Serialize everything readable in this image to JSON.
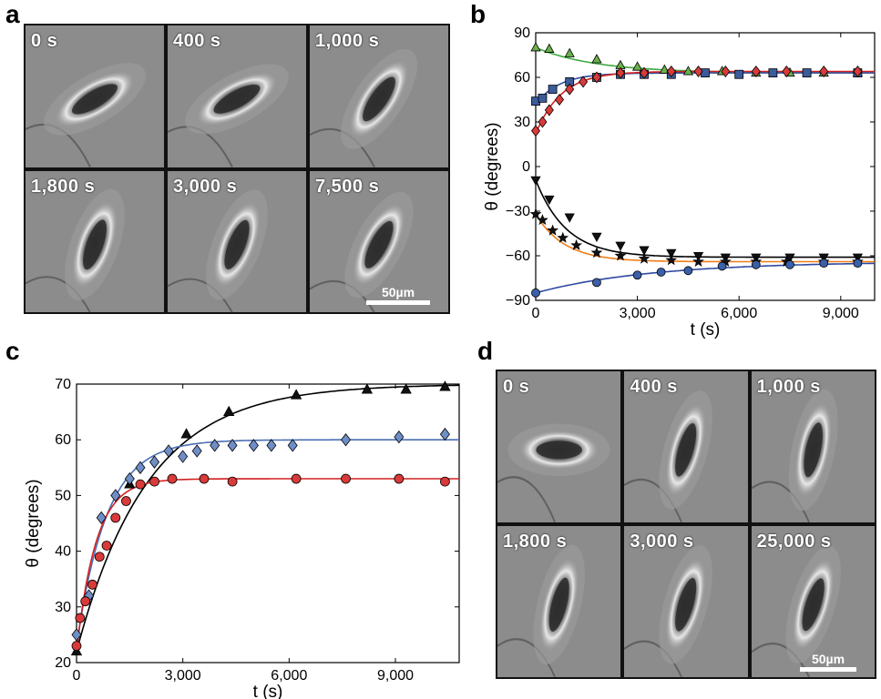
{
  "panels": {
    "a": {
      "label": "a",
      "tiles": [
        "0 s",
        "400 s",
        "1,000 s",
        "1,800 s",
        "3,000 s",
        "7,500 s"
      ],
      "orientation_deg": [
        -30,
        -28,
        -55,
        -70,
        -68,
        -62
      ],
      "scalebar": "50µm"
    },
    "d": {
      "label": "d",
      "tiles": [
        "0 s",
        "400 s",
        "1,000 s",
        "1,800 s",
        "3,000 s",
        "25,000 s"
      ],
      "orientation_deg": [
        0,
        -70,
        -75,
        -72,
        -70,
        -68
      ],
      "scalebar": "50µm"
    }
  },
  "chart_data": [
    {
      "panel": "b",
      "type": "scatter",
      "xlabel": "t (s)",
      "ylabel": "θ (degrees)",
      "xlim": [
        0,
        10000
      ],
      "ylim": [
        -90,
        90
      ],
      "xticks": [
        0,
        3000,
        6000,
        9000
      ],
      "xtick_labels": [
        "0",
        "3,000",
        "6,000",
        "9,000"
      ],
      "yticks": [
        -90,
        -60,
        -30,
        0,
        30,
        60,
        90
      ],
      "ytick_labels": [
        "−90",
        "−60",
        "−30",
        "0",
        "30",
        "60",
        "90"
      ],
      "series": [
        {
          "marker": "triangle-up",
          "color": "#6ab04c",
          "line": "#3ea83e",
          "fit": {
            "a": 80,
            "b": 63,
            "tau": 1800
          },
          "x": [
            0,
            400,
            1000,
            1800,
            2500,
            3000,
            3800,
            4500,
            5500,
            6500,
            7500,
            8500,
            9500
          ],
          "y": [
            80,
            79,
            76,
            72,
            68,
            67,
            65,
            64,
            64,
            63,
            63,
            63,
            63
          ]
        },
        {
          "marker": "square",
          "color": "#3b5b9a",
          "line": "#2e4aa0",
          "fit": {
            "a": 42,
            "b": 63,
            "tau": 700
          },
          "x": [
            0,
            200,
            500,
            1000,
            1800,
            2500,
            3200,
            4000,
            5000,
            6000,
            7000,
            8000,
            9500
          ],
          "y": [
            44,
            46,
            52,
            57,
            60,
            62,
            62,
            62,
            63,
            62,
            63,
            63,
            63
          ]
        },
        {
          "marker": "diamond",
          "color": "#d93a3a",
          "line": "#d42020",
          "fit": {
            "a": 22,
            "b": 64,
            "tau": 750
          },
          "x": [
            0,
            200,
            400,
            700,
            1000,
            1400,
            1800,
            2500,
            3200,
            4000,
            4800,
            5600,
            6500,
            7400,
            8500,
            9500
          ],
          "y": [
            24,
            30,
            38,
            45,
            52,
            57,
            60,
            63,
            63,
            64,
            64,
            64,
            64,
            64,
            64,
            64
          ]
        },
        {
          "marker": "triangle-down",
          "color": "#111111",
          "line": "#000000",
          "fit": {
            "a": -9,
            "b": -61,
            "tau": 900
          },
          "x": [
            0,
            400,
            1000,
            1800,
            2500,
            3200,
            4000,
            4800,
            5600,
            6500,
            7500,
            8500,
            9500
          ],
          "y": [
            -9,
            -22,
            -34,
            -47,
            -53,
            -56,
            -58,
            -60,
            -61,
            -61,
            -61,
            -61,
            -61
          ]
        },
        {
          "marker": "star",
          "color": "#111111",
          "line": "#f07d18",
          "fit": {
            "a": -32,
            "b": -64,
            "tau": 850
          },
          "x": [
            0,
            200,
            500,
            800,
            1200,
            1800,
            2500,
            3200,
            4000,
            4800,
            5600,
            6500,
            7400,
            8500,
            9500
          ],
          "y": [
            -32,
            -36,
            -43,
            -48,
            -53,
            -58,
            -60,
            -62,
            -63,
            -64,
            -64,
            -64,
            -64,
            -64,
            -64
          ]
        },
        {
          "marker": "circle",
          "color": "#3b5fa8",
          "line": "#2e4aa0",
          "fit": {
            "a": -85,
            "b": -64,
            "tau": 3400
          },
          "x": [
            0,
            1800,
            3000,
            3700,
            4500,
            5500,
            6500,
            7500,
            8500,
            9500
          ],
          "y": [
            -85,
            -78,
            -73,
            -71,
            -70,
            -67,
            -66,
            -66,
            -65,
            -65
          ]
        }
      ]
    },
    {
      "panel": "c",
      "type": "scatter",
      "xlabel": "t (s)",
      "ylabel": "θ (degrees)",
      "xlim": [
        0,
        10800
      ],
      "ylim": [
        20,
        70
      ],
      "xticks": [
        0,
        3000,
        6000,
        9000
      ],
      "xtick_labels": [
        "0",
        "3,000",
        "6,000",
        "9,000"
      ],
      "yticks": [
        20,
        30,
        40,
        50,
        60,
        70
      ],
      "ytick_labels": [
        "20",
        "30",
        "40",
        "50",
        "60",
        "70"
      ],
      "series": [
        {
          "marker": "triangle-up",
          "color": "#111111",
          "line": "#000000",
          "fit": {
            "a": 22,
            "b": 70,
            "tau": 2000
          },
          "x": [
            0,
            1500,
            3100,
            4300,
            6200,
            8200,
            9300,
            10400
          ],
          "y": [
            22,
            52,
            61,
            65,
            68,
            69,
            69,
            69.5
          ]
        },
        {
          "marker": "diamond",
          "color": "#6f8ec8",
          "line": "#4a6fb5",
          "fit": {
            "a": 23,
            "b": 60,
            "tau": 850
          },
          "x": [
            0,
            350,
            700,
            1100,
            1500,
            1800,
            2200,
            2600,
            3000,
            3400,
            3900,
            4400,
            5000,
            5500,
            6100,
            7600,
            9100,
            10400
          ],
          "y": [
            25,
            32,
            46,
            50,
            53,
            55,
            56,
            58,
            57,
            58,
            59,
            59,
            59,
            59,
            59,
            60,
            60.5,
            61
          ]
        },
        {
          "marker": "circle",
          "color": "#d93a3a",
          "line": "#d42020",
          "fit": {
            "a": 22,
            "b": 53,
            "tau": 550
          },
          "x": [
            0,
            100,
            250,
            450,
            650,
            850,
            1100,
            1400,
            1800,
            2200,
            2700,
            3600,
            4400,
            6200,
            7600,
            9100,
            10400
          ],
          "y": [
            23,
            28,
            31,
            34,
            39,
            41,
            46,
            49,
            52,
            52.5,
            53,
            53,
            52.5,
            53,
            53,
            53,
            52.5
          ]
        }
      ]
    }
  ]
}
